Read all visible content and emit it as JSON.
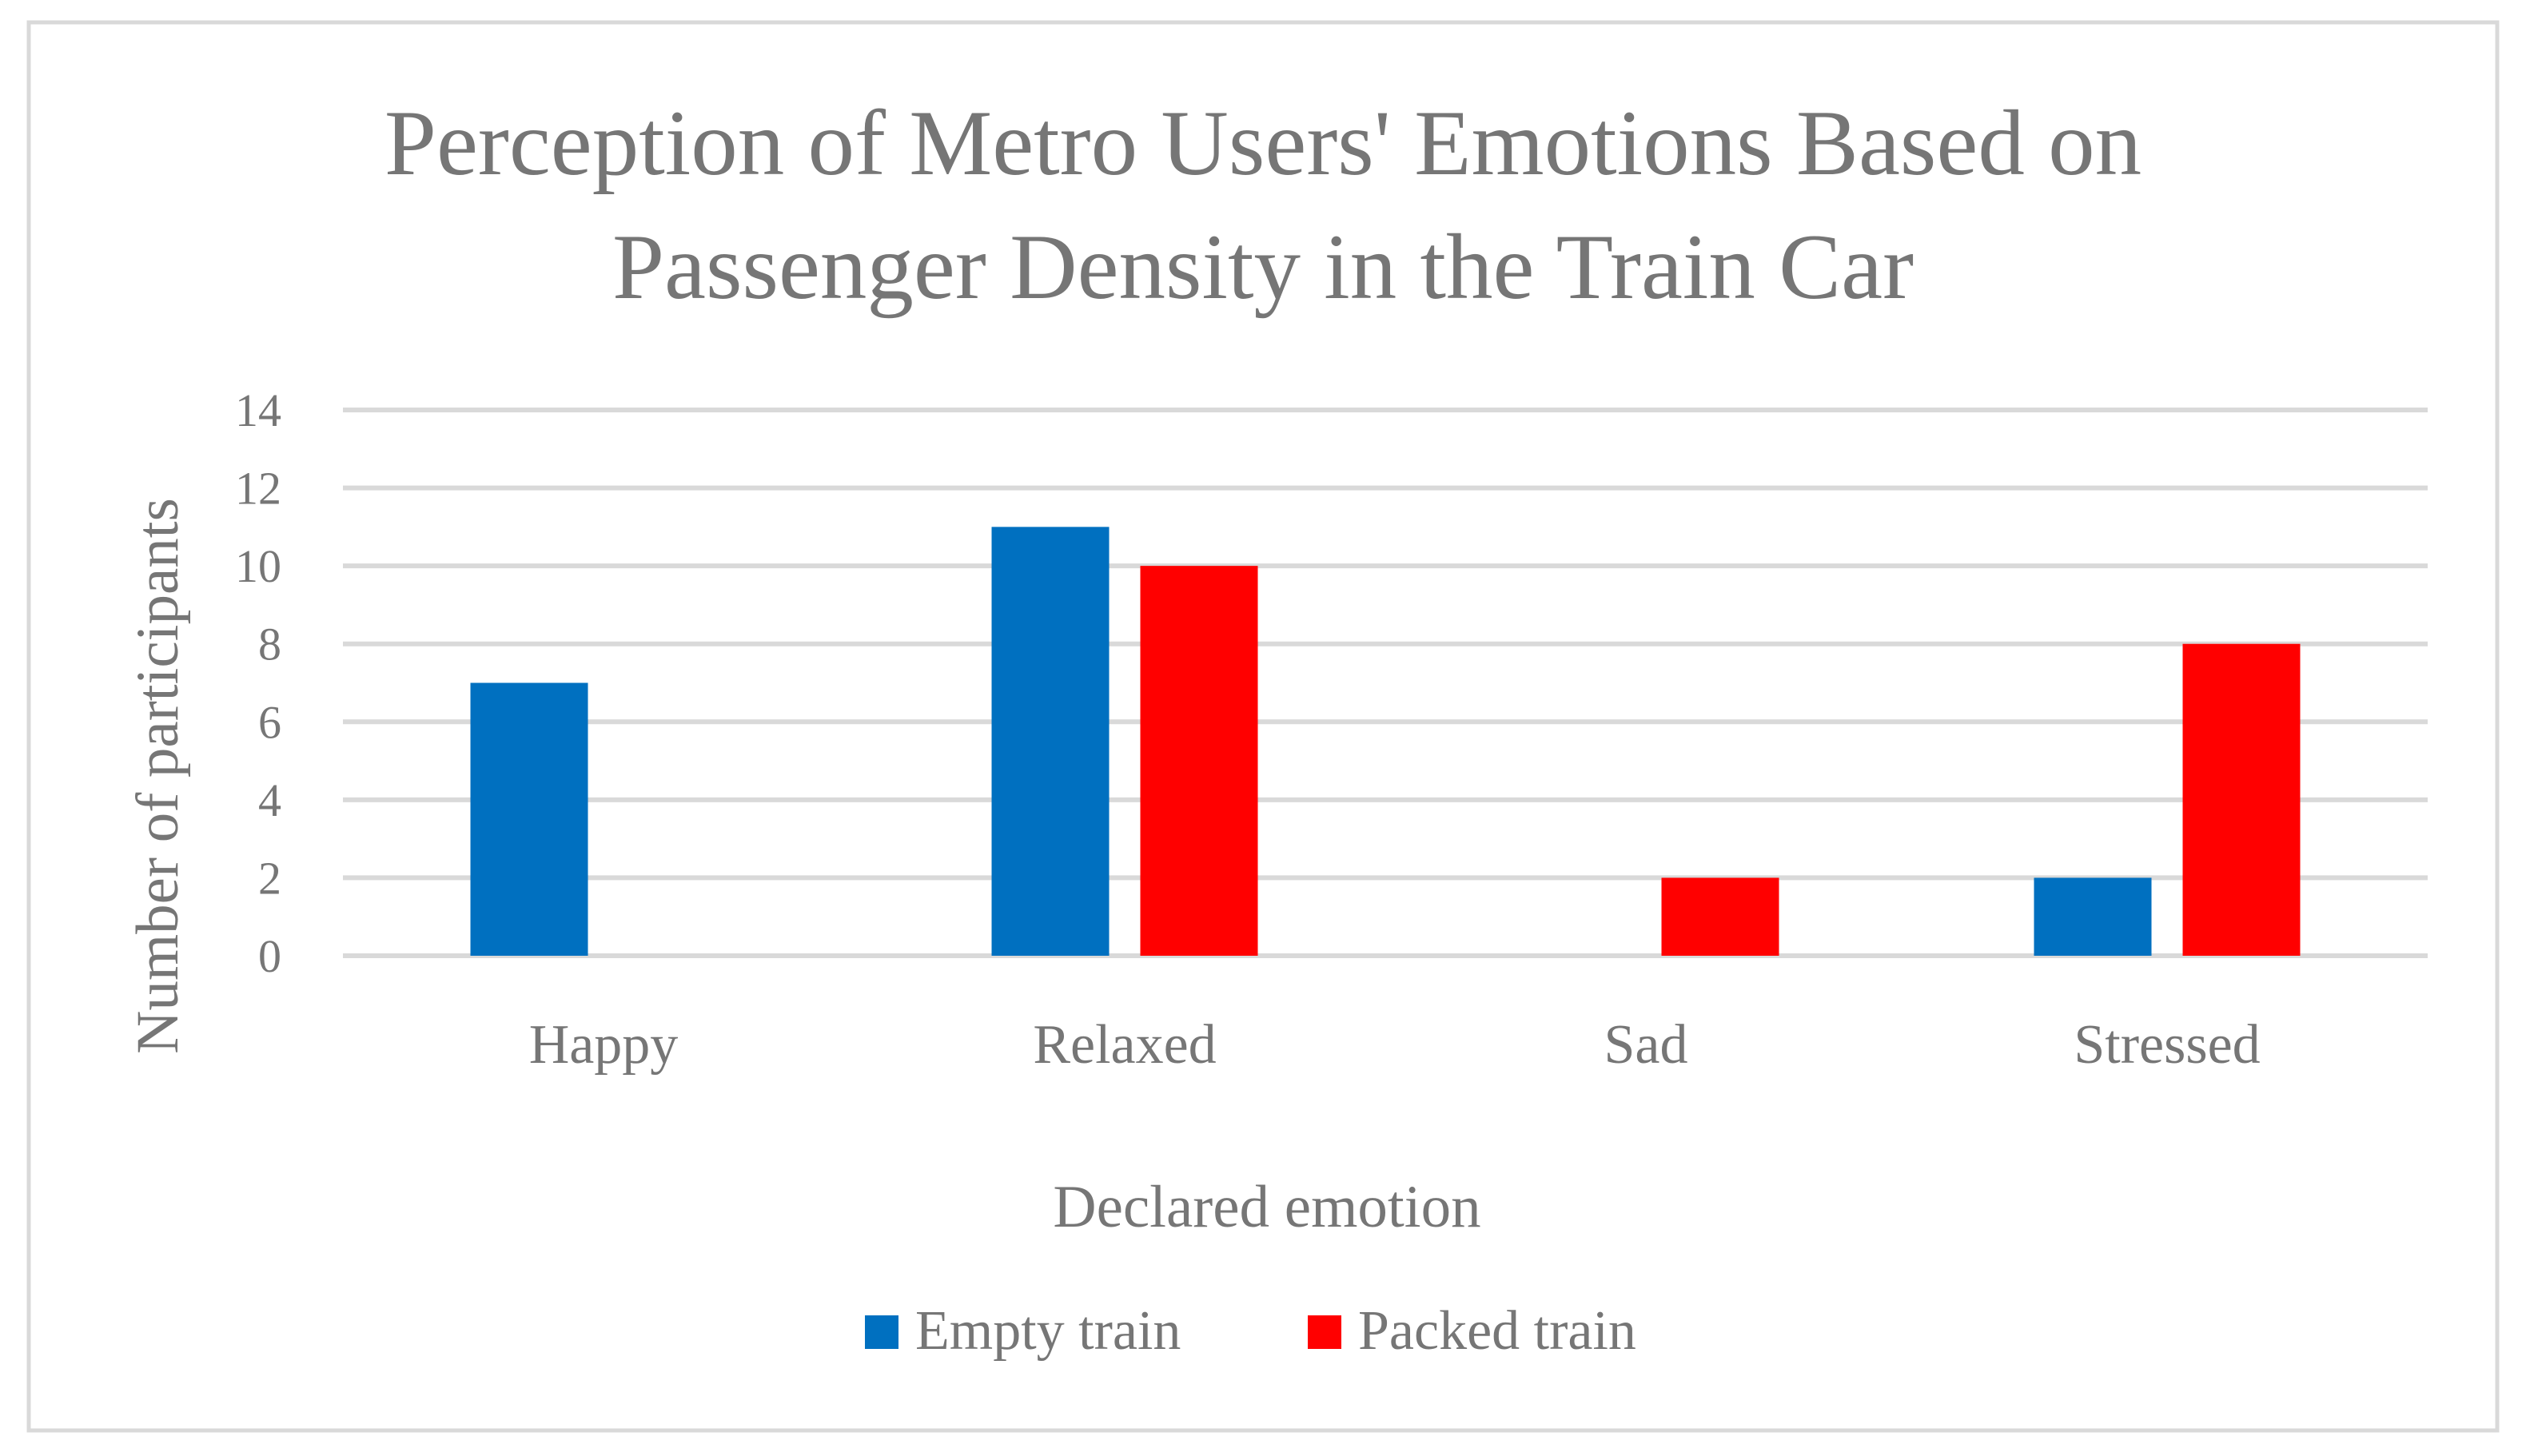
{
  "chart_data": {
    "type": "bar",
    "title_lines": [
      "Perception of Metro Users' Emotions Based on",
      "Passenger Density in the Train Car"
    ],
    "xlabel": "Declared emotion",
    "ylabel": "Number of participants",
    "categories": [
      "Happy",
      "Relaxed",
      "Sad",
      "Stressed"
    ],
    "series": [
      {
        "name": "Empty train",
        "color": "#0070C0",
        "values": [
          7,
          11,
          0,
          2
        ]
      },
      {
        "name": "Packed train",
        "color": "#FF0000",
        "values": [
          0,
          10,
          2,
          8
        ]
      }
    ],
    "ylim": [
      0,
      14
    ],
    "yticks": [
      0,
      2,
      4,
      6,
      8,
      10,
      12,
      14
    ],
    "grid": true,
    "legend_position": "bottom"
  }
}
